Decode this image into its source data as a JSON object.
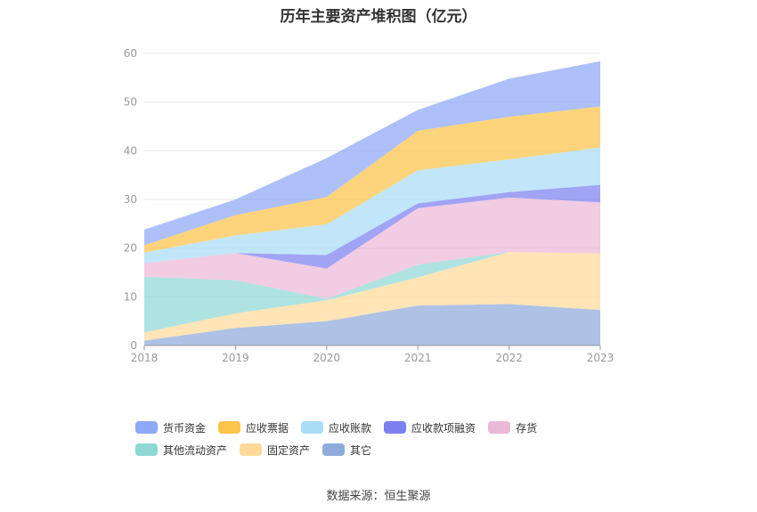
{
  "chart_data": {
    "type": "area",
    "stacked": true,
    "title": "历年主要资产堆积图（亿元）",
    "xlabel": "",
    "ylabel": "",
    "categories": [
      "2018",
      "2019",
      "2020",
      "2021",
      "2022",
      "2023"
    ],
    "ylim": [
      0,
      60
    ],
    "yticks": [
      "0",
      "10",
      "20",
      "30",
      "40",
      "50",
      "60"
    ],
    "grid": true,
    "legend_position": "bottom",
    "series": [
      {
        "name": "其它",
        "color": "#8eabdb",
        "values": [
          1.0,
          3.6,
          5.0,
          8.2,
          8.5,
          7.3
        ]
      },
      {
        "name": "固定资产",
        "color": "#ffd99a",
        "values": [
          1.7,
          3.0,
          4.3,
          5.8,
          10.7,
          11.6
        ]
      },
      {
        "name": "其他流动资产",
        "color": "#8fd8d6",
        "values": [
          11.4,
          6.8,
          0.3,
          2.6,
          0.0,
          0.0
        ]
      },
      {
        "name": "存货",
        "color": "#ecb8d7",
        "values": [
          2.8,
          5.6,
          6.2,
          11.6,
          11.2,
          10.5
        ]
      },
      {
        "name": "应收款项融资",
        "color": "#7d7ff0",
        "values": [
          0.0,
          0.0,
          2.8,
          1.0,
          1.1,
          3.6
        ]
      },
      {
        "name": "应收账款",
        "color": "#a9ddf6",
        "values": [
          2.2,
          3.6,
          6.3,
          6.8,
          6.7,
          7.7
        ]
      },
      {
        "name": "应收票据",
        "color": "#fcc44a",
        "values": [
          1.5,
          4.2,
          5.6,
          8.1,
          8.8,
          8.4
        ]
      },
      {
        "name": "货币资金",
        "color": "#8ea8f8",
        "values": [
          3.2,
          3.2,
          8.0,
          4.3,
          7.8,
          9.3
        ]
      }
    ],
    "legend_order": [
      "货币资金",
      "应收票据",
      "应收账款",
      "应收款项融资",
      "存货",
      "其他流动资产",
      "固定资产",
      "其它"
    ]
  },
  "footer": {
    "source": "数据来源：恒生聚源"
  }
}
